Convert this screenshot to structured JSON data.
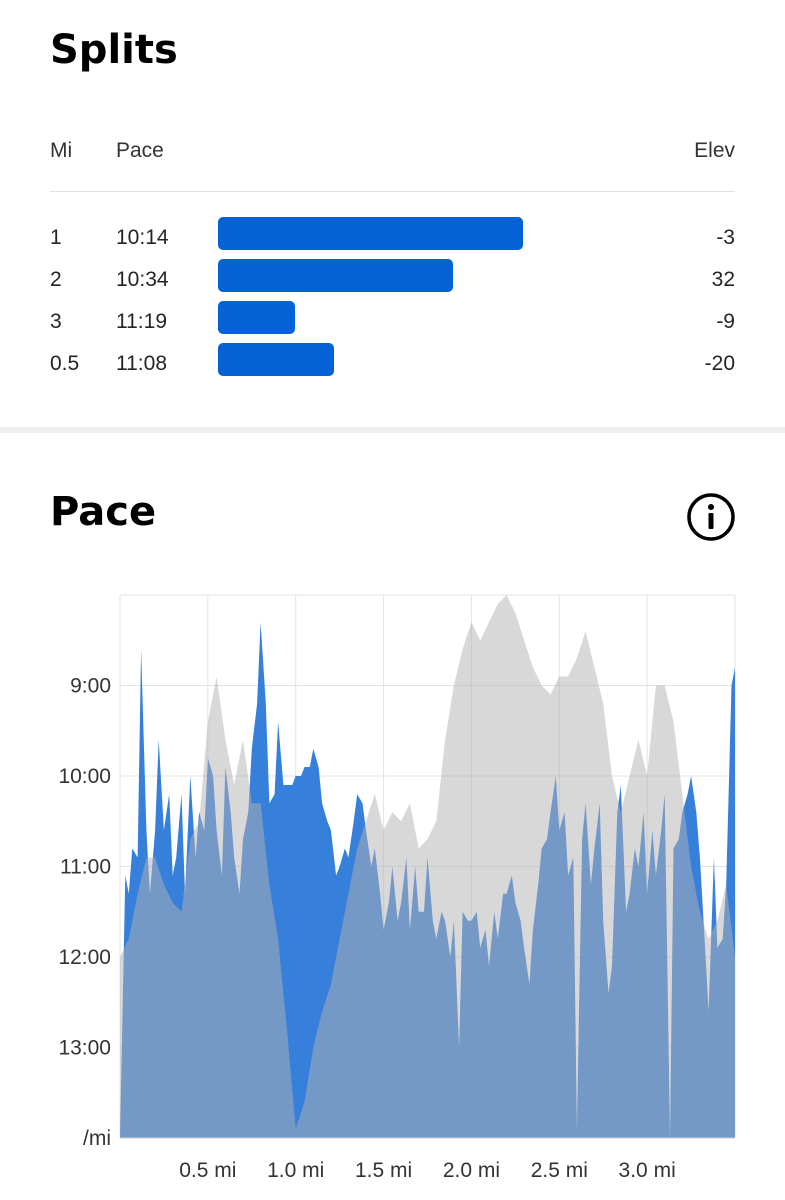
{
  "splits": {
    "title": "Splits",
    "headers": {
      "mi": "Mi",
      "pace": "Pace",
      "elev": "Elev"
    },
    "rows": [
      {
        "mi": "1",
        "pace": "10:14",
        "elev": "-3",
        "bar_fraction": 0.59
      },
      {
        "mi": "2",
        "pace": "10:34",
        "elev": "32",
        "bar_fraction": 0.455
      },
      {
        "mi": "3",
        "pace": "11:19",
        "elev": "-9",
        "bar_fraction": 0.148
      },
      {
        "mi": "0.5",
        "pace": "11:08",
        "elev": "-20",
        "bar_fraction": 0.224
      }
    ],
    "bar_color": "#0561d6"
  },
  "pace": {
    "title": "Pace",
    "info_icon": "info-icon"
  },
  "chart_data": {
    "type": "area",
    "xlim": [
      0,
      3.5
    ],
    "y_tick_labels": [
      "9:00",
      "10:00",
      "11:00",
      "12:00",
      "13:00",
      "/mi"
    ],
    "y_tick_minutes": [
      9,
      10,
      11,
      12,
      13,
      14
    ],
    "x_tick_labels": [
      "0.5 mi",
      "1.0 mi",
      "1.5 mi",
      "2.0 mi",
      "2.5 mi",
      "3.0 mi"
    ],
    "x_ticks": [
      0.5,
      1.0,
      1.5,
      2.0,
      2.5,
      3.0
    ],
    "ylim_minutes": [
      8.0,
      14.0
    ],
    "y_inverted": true,
    "grid": true,
    "series": [
      {
        "color": "#3680db",
        "x": [
          0.0,
          0.03,
          0.05,
          0.07,
          0.1,
          0.12,
          0.15,
          0.17,
          0.2,
          0.22,
          0.25,
          0.28,
          0.3,
          0.32,
          0.35,
          0.37,
          0.4,
          0.43,
          0.45,
          0.48,
          0.5,
          0.53,
          0.55,
          0.58,
          0.6,
          0.63,
          0.65,
          0.68,
          0.7,
          0.73,
          0.75,
          0.78,
          0.8,
          0.83,
          0.85,
          0.88,
          0.9,
          0.93,
          0.95,
          0.98,
          1.0,
          1.03,
          1.05,
          1.08,
          1.1,
          1.13,
          1.15,
          1.18,
          1.2,
          1.23,
          1.25,
          1.28,
          1.3,
          1.33,
          1.35,
          1.38,
          1.4,
          1.43,
          1.45,
          1.48,
          1.5,
          1.53,
          1.55,
          1.58,
          1.6,
          1.63,
          1.65,
          1.68,
          1.7,
          1.73,
          1.75,
          1.78,
          1.8,
          1.83,
          1.85,
          1.88,
          1.9,
          1.93,
          1.95,
          1.98,
          2.0,
          2.03,
          2.05,
          2.08,
          2.1,
          2.13,
          2.15,
          2.18,
          2.2,
          2.23,
          2.25,
          2.28,
          2.3,
          2.33,
          2.35,
          2.38,
          2.4,
          2.43,
          2.45,
          2.48,
          2.5,
          2.53,
          2.55,
          2.58,
          2.6,
          2.63,
          2.65,
          2.68,
          2.7,
          2.73,
          2.75,
          2.78,
          2.8,
          2.83,
          2.85,
          2.88,
          2.9,
          2.93,
          2.95,
          2.98,
          3.0,
          3.03,
          3.05,
          3.08,
          3.1,
          3.13,
          3.15,
          3.18,
          3.2,
          3.23,
          3.25,
          3.28,
          3.3,
          3.33,
          3.35,
          3.38,
          3.4,
          3.43,
          3.45,
          3.48,
          3.5
        ],
        "y_minutes": [
          14.0,
          11.1,
          11.3,
          10.8,
          10.9,
          8.6,
          10.6,
          11.3,
          10.6,
          9.6,
          10.6,
          10.2,
          11.1,
          10.9,
          10.2,
          11.3,
          10.0,
          10.9,
          10.4,
          10.6,
          9.8,
          10.0,
          10.6,
          11.1,
          9.9,
          10.4,
          10.9,
          11.3,
          10.7,
          10.4,
          9.7,
          9.2,
          8.3,
          9.2,
          10.3,
          10.2,
          9.4,
          10.1,
          10.1,
          10.1,
          10.0,
          10.0,
          9.9,
          9.9,
          9.7,
          9.9,
          10.3,
          10.5,
          10.6,
          11.1,
          11.0,
          10.8,
          10.9,
          10.5,
          10.2,
          10.3,
          10.6,
          11.0,
          10.8,
          11.3,
          11.7,
          11.4,
          11.0,
          11.6,
          11.4,
          10.9,
          11.7,
          11.0,
          11.5,
          11.5,
          10.9,
          11.6,
          11.8,
          11.5,
          11.6,
          12.0,
          11.6,
          13.0,
          11.5,
          11.6,
          11.6,
          11.5,
          11.9,
          11.7,
          12.1,
          11.5,
          11.8,
          11.3,
          11.3,
          11.1,
          11.4,
          11.6,
          11.9,
          12.3,
          11.7,
          11.2,
          10.8,
          10.7,
          10.4,
          10.0,
          10.6,
          10.4,
          11.1,
          10.9,
          13.9,
          10.7,
          10.3,
          11.2,
          10.8,
          10.3,
          11.6,
          12.4,
          12.1,
          10.4,
          10.1,
          11.5,
          11.3,
          10.8,
          11.0,
          10.4,
          11.3,
          10.6,
          11.1,
          10.6,
          10.2,
          14.0,
          10.8,
          10.7,
          10.4,
          10.2,
          10.0,
          10.4,
          10.9,
          11.9,
          12.6,
          10.9,
          11.9,
          11.8,
          11.2,
          9.0,
          8.8
        ]
      },
      {
        "color": "#b2b2b2",
        "x": [
          0.0,
          0.05,
          0.1,
          0.15,
          0.2,
          0.25,
          0.3,
          0.35,
          0.4,
          0.45,
          0.5,
          0.55,
          0.6,
          0.65,
          0.7,
          0.75,
          0.8,
          0.85,
          0.9,
          0.95,
          1.0,
          1.05,
          1.1,
          1.15,
          1.2,
          1.25,
          1.3,
          1.35,
          1.4,
          1.45,
          1.5,
          1.55,
          1.6,
          1.65,
          1.7,
          1.75,
          1.8,
          1.85,
          1.9,
          1.95,
          2.0,
          2.05,
          2.1,
          2.15,
          2.2,
          2.25,
          2.3,
          2.35,
          2.4,
          2.45,
          2.5,
          2.55,
          2.6,
          2.65,
          2.7,
          2.75,
          2.8,
          2.85,
          2.9,
          2.95,
          3.0,
          3.05,
          3.1,
          3.15,
          3.2,
          3.25,
          3.3,
          3.35,
          3.4,
          3.45,
          3.5
        ],
        "y_minutes": [
          12.0,
          11.8,
          11.3,
          10.9,
          10.9,
          11.2,
          11.4,
          11.5,
          10.7,
          10.5,
          9.4,
          8.9,
          9.6,
          10.1,
          9.6,
          10.3,
          10.3,
          11.2,
          11.8,
          12.8,
          13.9,
          13.6,
          13.0,
          12.6,
          12.3,
          11.8,
          11.3,
          10.8,
          10.5,
          10.2,
          10.6,
          10.4,
          10.5,
          10.3,
          10.8,
          10.7,
          10.5,
          9.6,
          9.0,
          8.6,
          8.3,
          8.5,
          8.3,
          8.1,
          8.0,
          8.2,
          8.5,
          8.8,
          9.0,
          9.1,
          8.9,
          8.9,
          8.7,
          8.4,
          8.8,
          9.2,
          10.0,
          10.4,
          10.0,
          9.6,
          10.0,
          9.0,
          9.0,
          9.4,
          10.2,
          11.0,
          11.5,
          11.8,
          11.6,
          11.2,
          12.0
        ]
      }
    ]
  }
}
